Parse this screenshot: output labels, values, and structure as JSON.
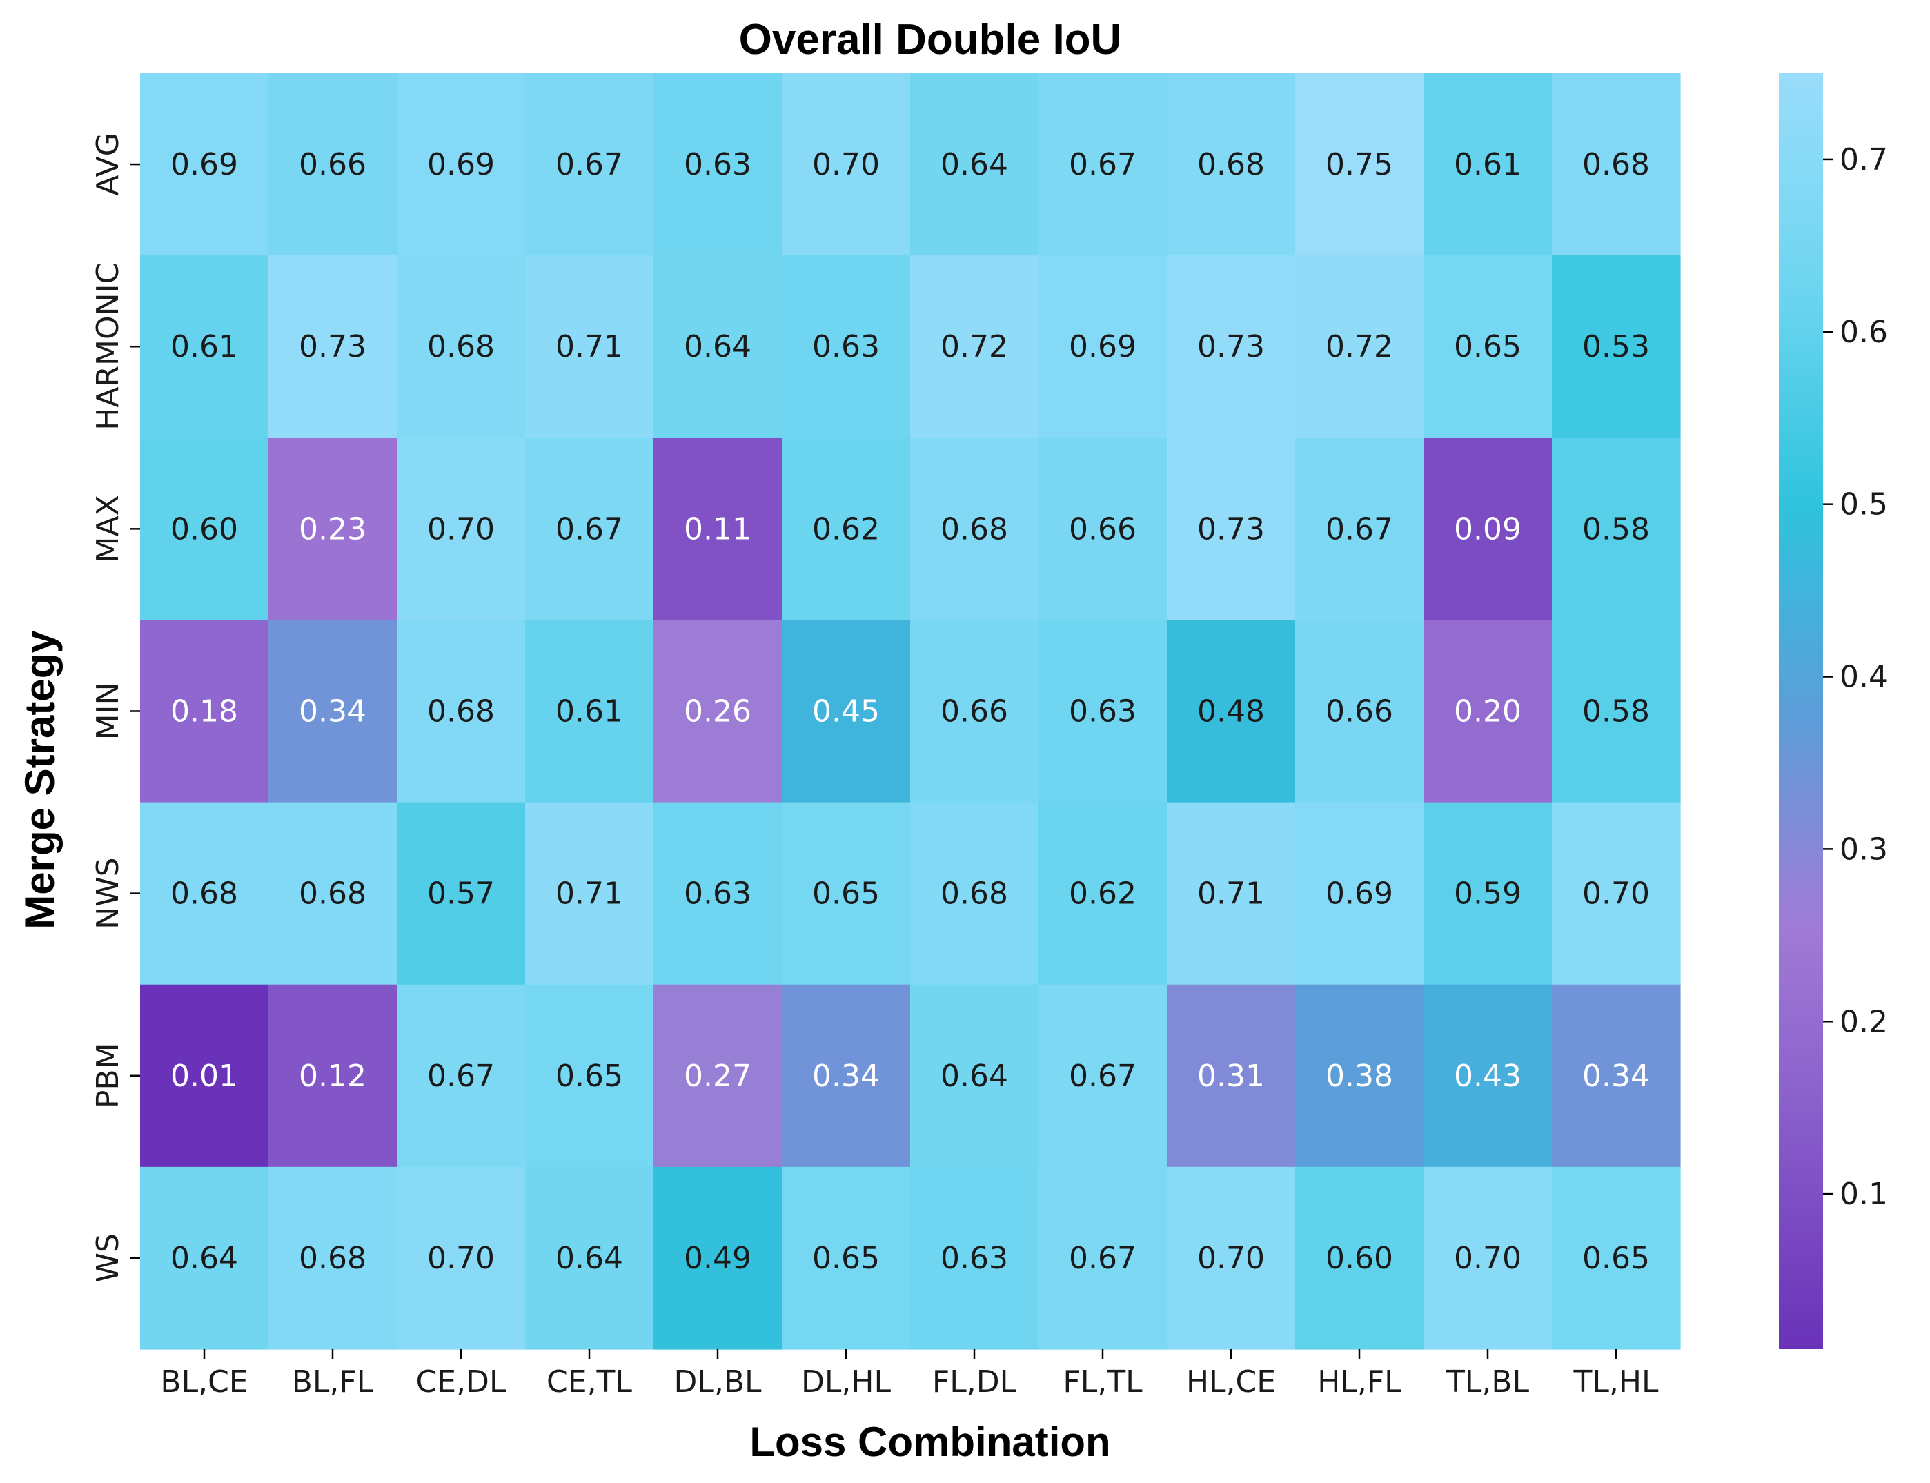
{
  "chart_data": {
    "type": "heatmap",
    "title": "Overall Double IoU",
    "xlabel": "Loss Combination",
    "ylabel": "Merge Strategy",
    "x_categories": [
      "BL,CE",
      "BL,FL",
      "CE,DL",
      "CE,TL",
      "DL,BL",
      "DL,HL",
      "FL,DL",
      "FL,TL",
      "HL,CE",
      "HL,FL",
      "TL,BL",
      "TL,HL"
    ],
    "y_categories": [
      "AVG",
      "HARMONIC",
      "MAX",
      "MIN",
      "NWS",
      "PBM",
      "WS"
    ],
    "values": [
      [
        0.69,
        0.66,
        0.69,
        0.67,
        0.63,
        0.7,
        0.64,
        0.67,
        0.68,
        0.75,
        0.61,
        0.68
      ],
      [
        0.61,
        0.73,
        0.68,
        0.71,
        0.64,
        0.63,
        0.72,
        0.69,
        0.73,
        0.72,
        0.65,
        0.53
      ],
      [
        0.6,
        0.23,
        0.7,
        0.67,
        0.11,
        0.62,
        0.68,
        0.66,
        0.73,
        0.67,
        0.09,
        0.58
      ],
      [
        0.18,
        0.34,
        0.68,
        0.61,
        0.26,
        0.45,
        0.66,
        0.63,
        0.48,
        0.66,
        0.2,
        0.58
      ],
      [
        0.68,
        0.68,
        0.57,
        0.71,
        0.63,
        0.65,
        0.68,
        0.62,
        0.71,
        0.69,
        0.59,
        0.7
      ],
      [
        0.01,
        0.12,
        0.67,
        0.65,
        0.27,
        0.34,
        0.64,
        0.67,
        0.31,
        0.38,
        0.43,
        0.34
      ],
      [
        0.64,
        0.68,
        0.7,
        0.64,
        0.49,
        0.65,
        0.63,
        0.67,
        0.7,
        0.6,
        0.7,
        0.65
      ]
    ],
    "value_format": "2 decimals",
    "colorbar": {
      "range": [
        0.01,
        0.75
      ],
      "ticks": [
        0.1,
        0.2,
        0.3,
        0.4,
        0.5,
        0.6,
        0.7
      ],
      "tick_labels": [
        "0.1",
        "0.2",
        "0.3",
        "0.4",
        "0.5",
        "0.6",
        "0.7"
      ],
      "colors": [
        [
          0.0,
          "#6a32b8"
        ],
        [
          0.2,
          "#8b62cc"
        ],
        [
          0.33,
          "#a07ad6"
        ],
        [
          0.5,
          "#5b9ed9"
        ],
        [
          0.66,
          "#2fc3dd"
        ],
        [
          0.83,
          "#6dd5f0"
        ],
        [
          1.0,
          "#99ddfb"
        ]
      ],
      "placement": "right"
    },
    "text_colors": {
      "light": "#ffffff",
      "dark": "#1a1a1a"
    },
    "grid": false
  }
}
